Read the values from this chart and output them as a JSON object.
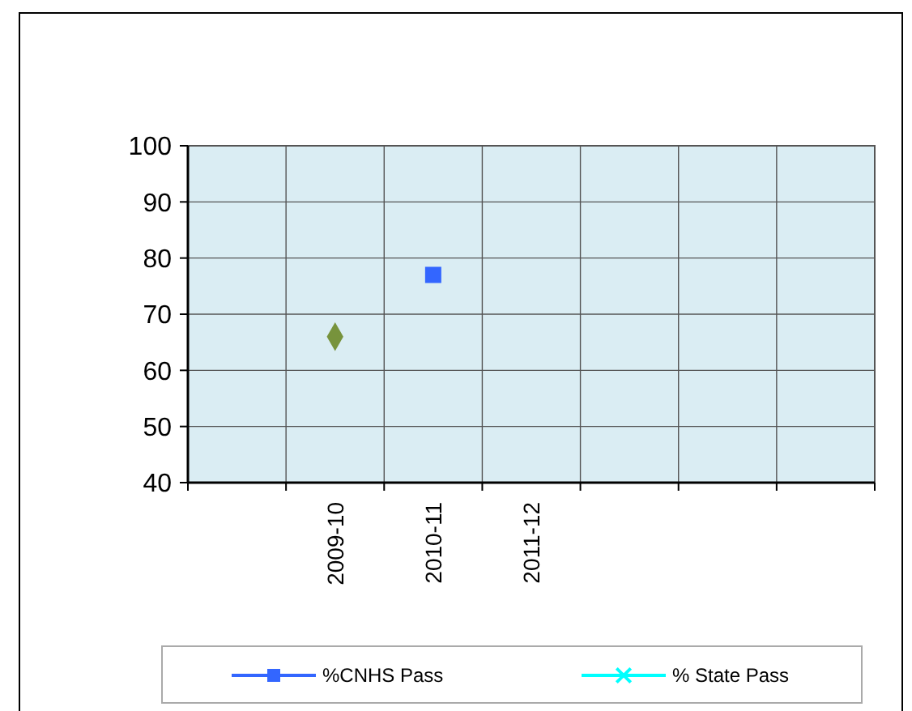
{
  "chart_data": {
    "type": "line",
    "categories": [
      null,
      "2009-10",
      "2010-11",
      "2011-12",
      null,
      null,
      null
    ],
    "series": [
      {
        "name": "%CNHS Pass",
        "color": "#3366ff",
        "marker": "square",
        "values": [
          null,
          null,
          77,
          null,
          null,
          null,
          null
        ]
      },
      {
        "name": "% State Pass",
        "color": "#00ffff",
        "marker": "cross",
        "values": [
          null,
          null,
          null,
          null,
          null,
          null,
          null
        ]
      },
      {
        "color": "#77933c",
        "marker": "diamond",
        "values": [
          null,
          66,
          null,
          null,
          null,
          null,
          null
        ]
      }
    ],
    "ylim": [
      40,
      100
    ],
    "yticks": [
      40,
      50,
      60,
      70,
      80,
      90,
      100
    ],
    "grid": true,
    "legend": "bottom"
  }
}
